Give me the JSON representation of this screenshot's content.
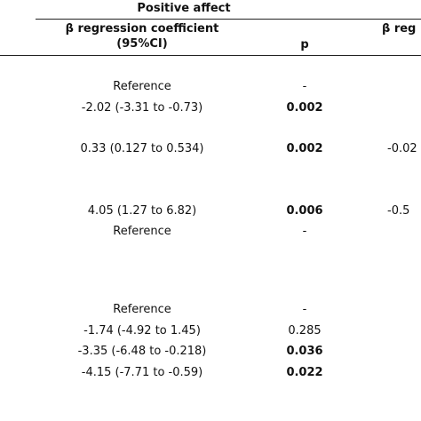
{
  "header": {
    "title": "Positive affect",
    "coef_label": [
      "β regression coefficient",
      "(95%CI)"
    ],
    "p_label": "p",
    "next_label": "β reg"
  },
  "rows": [
    {
      "coef": "Reference",
      "p": "-"
    },
    {
      "coef": "-2.02 (-3.31 to -0.73)",
      "p": "0.002"
    },
    {
      "coef": "0.33 (0.127 to 0.534)",
      "p": "0.002",
      "next": "-0.02"
    },
    {
      "coef": "4.05 (1.27 to 6.82)",
      "p": "0.006",
      "next": "-0.5"
    },
    {
      "coef": "Reference",
      "p": "-"
    },
    {
      "coef": "Reference",
      "p": "-"
    },
    {
      "coef": "-1.74 (-4.92 to 1.45)",
      "p": "0.285"
    },
    {
      "coef": "-3.35 (-6.48 to -0.218)",
      "p": "0.036"
    },
    {
      "coef": "-4.15 (-7.71 to -0.59)",
      "p": "0.022"
    }
  ]
}
